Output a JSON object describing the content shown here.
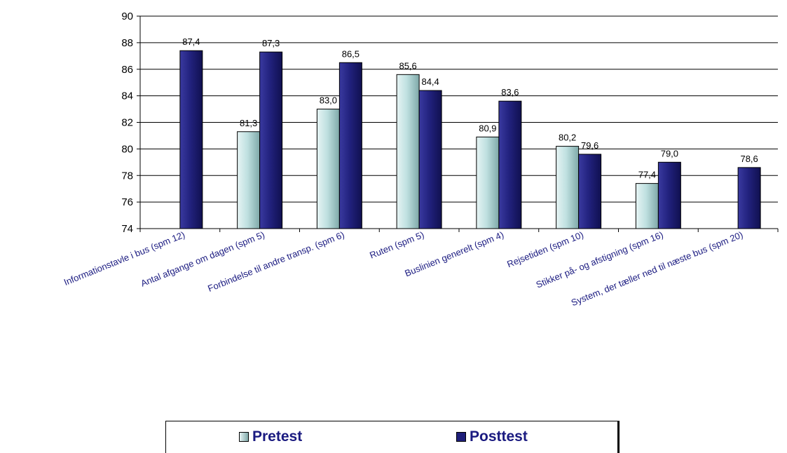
{
  "chart_data": {
    "type": "bar",
    "categories": [
      "Informationstavle i bus (spm 12)",
      "Antal afgange om dagen (spm 5)",
      "Forbindelse til andre transp. (spm 6)",
      "Ruten (spm 5)",
      "Buslinien generelt (spm 4)",
      "Rejsetiden (spm 10)",
      "Stikker på- og afstigning (spm 16)",
      "System, der tæller ned til næste bus (spm 20)"
    ],
    "series": [
      {
        "name": "Pretest",
        "values": [
          null,
          81.3,
          83.0,
          85.6,
          80.9,
          80.2,
          77.4,
          null
        ],
        "labels": [
          "",
          "81,3",
          "83,0",
          "85,6",
          "80,9",
          "80,2",
          "77,4",
          ""
        ],
        "color": "#b3d9d9"
      },
      {
        "name": "Posttest",
        "values": [
          87.4,
          87.3,
          86.5,
          84.4,
          83.6,
          79.6,
          79.0,
          78.6
        ],
        "labels": [
          "87,4",
          "87,3",
          "86,5",
          "84,4",
          "83,6",
          "79,6",
          "79,0",
          "78,6"
        ],
        "color": "#1f1f7a"
      }
    ],
    "yticks": [
      74,
      76,
      78,
      80,
      82,
      84,
      86,
      88,
      90
    ],
    "ylim": [
      74,
      90
    ],
    "grid": true,
    "legend_position": "bottom"
  }
}
